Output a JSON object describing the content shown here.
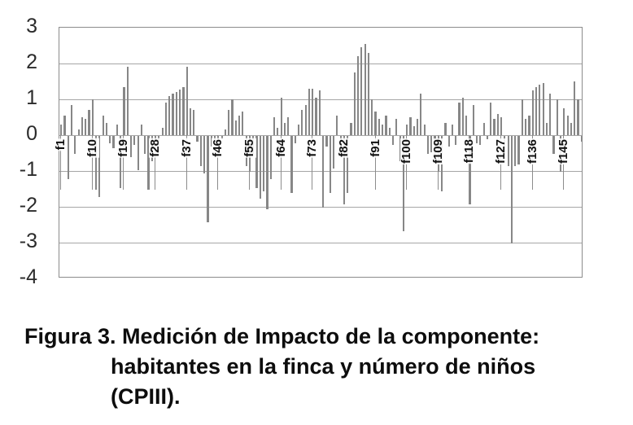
{
  "figure": {
    "caption": {
      "line1": "Figura 3. Medición de Impacto de la componente:",
      "line2": "habitantes en la finca y número de niños",
      "line3": "(CPIII)."
    }
  },
  "chart_data": {
    "type": "bar",
    "title": "Medición de Impacto de la componente: habitantes en la finca y número de niños (CPIII)",
    "xlabel": "",
    "ylabel": "",
    "ylim": [
      -4,
      3
    ],
    "y_ticks": [
      3,
      2,
      1,
      0,
      -1,
      -2,
      -3,
      -4
    ],
    "grid": true,
    "legend_position": "none",
    "n_bars": 150,
    "category_prefix": "f",
    "x_tick_labels": [
      "f1",
      "f10",
      "f19",
      "f28",
      "f37",
      "f46",
      "f55",
      "f64",
      "f73",
      "f82",
      "f91",
      "f100",
      "f109",
      "f118",
      "f127",
      "f136",
      "f145"
    ],
    "x_tick_start_index": 1,
    "x_tick_step": 9,
    "bar_color": "#878787",
    "gridline_color": "#a6a6a6",
    "frame_color": "#8c8c8c",
    "values": [
      0.3,
      0.55,
      -1.2,
      0.85,
      -0.5,
      0.15,
      0.5,
      0.45,
      0.7,
      1.0,
      -1.5,
      -1.7,
      0.55,
      0.35,
      -0.2,
      -0.35,
      0.3,
      -1.45,
      1.35,
      1.9,
      -0.6,
      -0.25,
      -0.95,
      0.3,
      -0.5,
      -1.5,
      -0.7,
      -0.45,
      -0.3,
      0.2,
      0.9,
      1.1,
      1.15,
      1.2,
      1.27,
      1.33,
      1.9,
      0.75,
      0.7,
      -0.15,
      -0.85,
      -1.05,
      -2.4,
      -0.3,
      -0.2,
      -0.15,
      -0.1,
      0.15,
      0.7,
      1.0,
      0.4,
      0.55,
      0.65,
      -0.85,
      -1.0,
      -0.5,
      -1.45,
      -1.75,
      -1.55,
      -2.05,
      -1.2,
      0.5,
      0.2,
      1.05,
      0.35,
      0.5,
      -1.6,
      -0.2,
      0.3,
      0.7,
      0.85,
      1.3,
      1.3,
      1.05,
      1.25,
      -2.0,
      -0.3,
      -1.6,
      -0.9,
      0.55,
      -0.6,
      -1.9,
      -1.6,
      0.35,
      1.75,
      2.2,
      2.45,
      2.55,
      2.3,
      1.0,
      0.65,
      0.45,
      0.3,
      0.55,
      0.2,
      -0.25,
      0.45,
      -0.7,
      -2.65,
      0.3,
      0.5,
      0.25,
      0.45,
      1.15,
      0.3,
      -0.5,
      -0.45,
      -0.55,
      -1.0,
      -1.55,
      0.35,
      -0.3,
      0.3,
      -0.25,
      0.9,
      1.05,
      0.55,
      -1.9,
      0.85,
      -0.2,
      -0.25,
      0.35,
      -0.1,
      0.9,
      0.45,
      0.6,
      0.5,
      -0.55,
      -0.85,
      -3.0,
      -0.85,
      -0.8,
      1.0,
      0.45,
      0.55,
      1.25,
      1.35,
      1.4,
      1.45,
      0.35,
      1.15,
      -0.5,
      1.0,
      -1.0,
      0.75,
      0.55,
      0.35,
      1.5,
      1.0,
      -0.15
    ]
  }
}
